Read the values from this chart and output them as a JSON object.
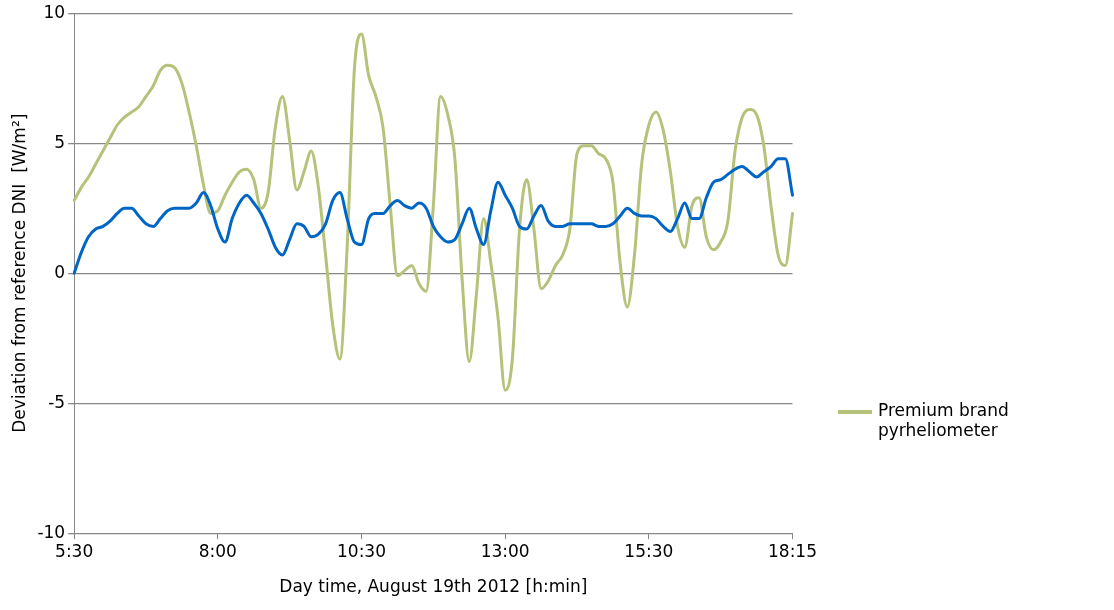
{
  "chart_data": {
    "type": "line",
    "xlabel": "Day time, August 19th 2012 [h:min]",
    "ylabel": "Deviation from reference DNI  [W/m²]",
    "categories": [
      "5:30",
      null,
      null,
      null,
      null,
      null,
      null,
      null,
      null,
      null,
      null,
      null,
      null,
      null,
      null,
      null,
      null,
      null,
      null,
      null,
      "8:00",
      null,
      null,
      null,
      null,
      null,
      null,
      null,
      null,
      null,
      null,
      null,
      null,
      null,
      null,
      null,
      null,
      null,
      null,
      null,
      "10:30",
      null,
      null,
      null,
      null,
      null,
      null,
      null,
      null,
      null,
      null,
      null,
      null,
      null,
      null,
      null,
      null,
      null,
      null,
      null,
      "13:00",
      null,
      null,
      null,
      null,
      null,
      null,
      null,
      null,
      null,
      null,
      null,
      null,
      null,
      null,
      null,
      null,
      null,
      null,
      null,
      "15:30",
      null,
      null,
      null,
      null,
      null,
      null,
      null,
      null,
      null,
      null,
      null,
      null,
      null,
      null,
      null,
      null,
      null,
      null,
      null,
      "18:15"
    ],
    "series": [
      {
        "color": "#0066c6",
        "values": [
          0,
          0.8,
          1.4,
          1.7,
          1.8,
          2.0,
          2.3,
          2.5,
          2.5,
          2.2,
          1.9,
          1.8,
          2.1,
          2.4,
          2.5,
          2.5,
          2.5,
          2.7,
          3.1,
          2.6,
          1.7,
          1.2,
          2.1,
          2.7,
          3.0,
          2.7,
          2.3,
          1.7,
          1.0,
          0.7,
          1.3,
          1.9,
          1.8,
          1.4,
          1.5,
          1.9,
          2.8,
          3.1,
          2.1,
          1.2,
          1.1,
          2.1,
          2.3,
          2.3,
          2.6,
          2.8,
          2.6,
          2.5,
          2.7,
          2.5,
          1.8,
          1.4,
          1.2,
          1.3,
          1.9,
          2.5,
          1.7,
          1.1,
          2.4,
          3.5,
          3.0,
          2.5,
          1.8,
          1.7,
          2.2,
          2.6,
          2.0,
          1.8,
          1.8,
          1.9,
          1.9,
          1.9,
          1.9,
          1.8,
          1.8,
          1.9,
          2.2,
          2.5,
          2.3,
          2.2,
          2.2,
          2.1,
          1.8,
          1.6,
          2.1,
          2.7,
          2.1,
          2.1,
          2.9,
          3.5,
          3.6,
          3.8,
          4.0,
          4.1,
          3.9,
          3.7,
          3.9,
          4.1,
          4.4,
          4.4,
          3.0
        ]
      },
      {
        "name": "Premium brand pyrheliometer",
        "color": "#b5c279",
        "values": [
          2.8,
          3.3,
          3.7,
          4.2,
          4.7,
          5.2,
          5.7,
          6.0,
          6.2,
          6.4,
          6.8,
          7.2,
          7.8,
          8.0,
          7.9,
          7.3,
          6.2,
          4.9,
          3.4,
          2.3,
          2.4,
          3.0,
          3.5,
          3.9,
          4.0,
          3.6,
          2.5,
          3.1,
          5.6,
          6.8,
          5.1,
          3.2,
          3.9,
          4.7,
          3.3,
          0.7,
          -2.0,
          -3.3,
          1.0,
          7.8,
          9.2,
          7.6,
          6.8,
          5.6,
          2.6,
          -0.1,
          0.1,
          0.3,
          -0.4,
          -0.7,
          2.6,
          6.8,
          6.1,
          4.4,
          -0.2,
          -3.4,
          -0.8,
          2.1,
          0.4,
          -1.7,
          -4.5,
          -3.3,
          1.7,
          3.6,
          1.7,
          -0.6,
          -0.3,
          0.3,
          0.7,
          1.7,
          4.6,
          4.9,
          4.9,
          4.6,
          4.4,
          3.5,
          0.4,
          -1.3,
          0.7,
          4.2,
          5.7,
          6.2,
          5.5,
          3.9,
          1.8,
          1.0,
          2.6,
          2.9,
          1.4,
          0.9,
          1.2,
          2.0,
          4.7,
          6.0,
          6.3,
          6.1,
          4.9,
          2.6,
          0.7,
          0.3,
          2.3
        ]
      }
    ],
    "ylim": [
      -10,
      10
    ],
    "yticks": [
      -10,
      -5,
      0,
      5,
      10
    ],
    "grid": "y",
    "legend": "right",
    "marker": "none",
    "line_style": "solid"
  }
}
